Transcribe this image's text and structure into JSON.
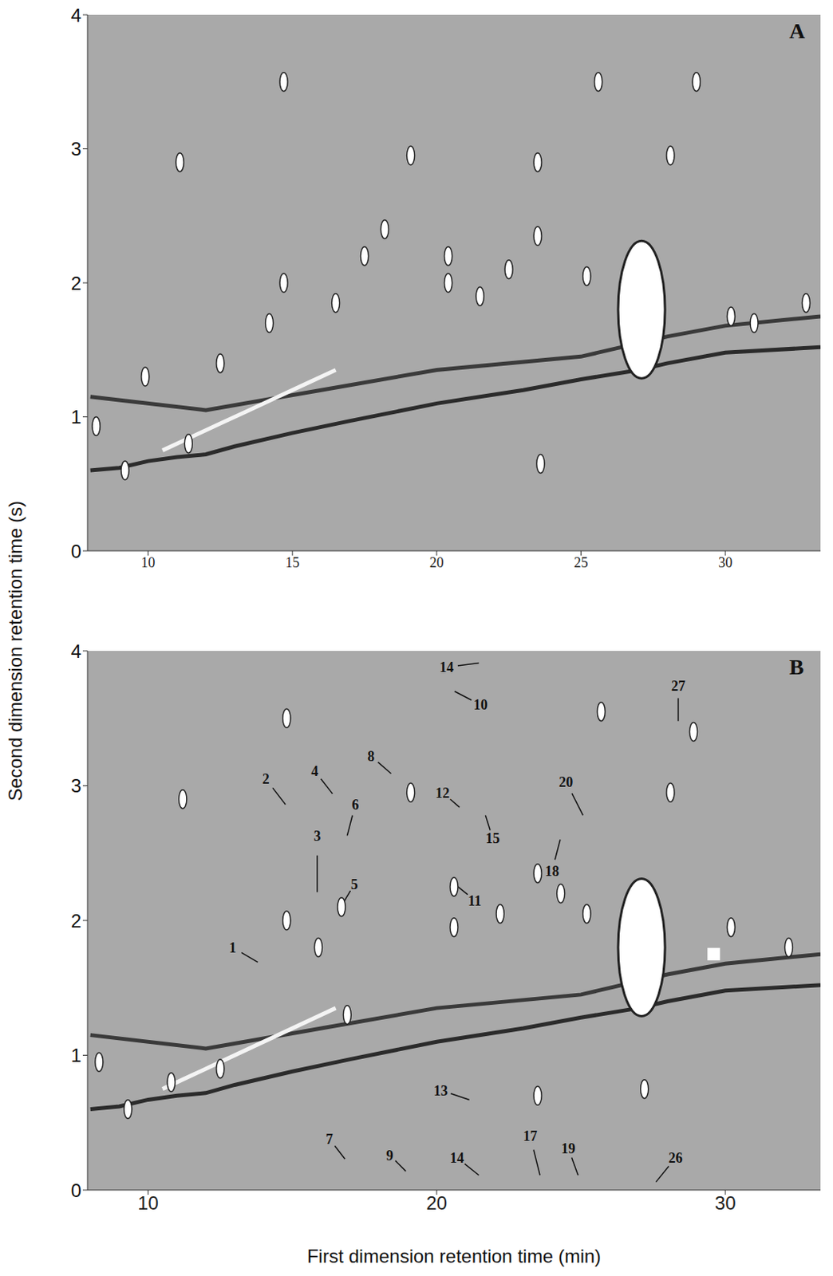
{
  "ylabel": "Second dimension retention time (s)",
  "chart_data": [
    {
      "type": "scatter",
      "title": "A",
      "xlim": [
        7.9,
        33.3
      ],
      "ylim": [
        0,
        4
      ],
      "xticks": [
        10,
        15,
        20,
        25,
        30
      ],
      "yticks": [
        0,
        1,
        2,
        3,
        4
      ],
      "series": [
        {
          "type": "line",
          "color": "#2b2b2b",
          "x": [
            8,
            9,
            10,
            11,
            12,
            13,
            15,
            17,
            20,
            23,
            25,
            27,
            28,
            30,
            33.3
          ],
          "values": [
            0.6,
            0.62,
            0.67,
            0.7,
            0.72,
            0.78,
            0.88,
            0.97,
            1.1,
            1.2,
            1.28,
            1.35,
            1.4,
            1.48,
            1.52
          ]
        },
        {
          "type": "line",
          "color": "#3a3a3a",
          "x": [
            8,
            12,
            16,
            20,
            25,
            28,
            30,
            33.3
          ],
          "values": [
            1.15,
            1.05,
            1.2,
            1.35,
            1.45,
            1.6,
            1.68,
            1.75
          ]
        },
        {
          "type": "line",
          "color": "#f4f4f4",
          "x": [
            10.5,
            11.5,
            12.5,
            13.5,
            14.5,
            15.5,
            16.5
          ],
          "values": [
            0.75,
            0.85,
            0.95,
            1.05,
            1.15,
            1.25,
            1.35
          ]
        },
        {
          "type": "scatter",
          "color": "#ffffff",
          "marker": "ellipse",
          "x": [
            8.2,
            9.2,
            9.9,
            11.1,
            11.4,
            12.5,
            14.2,
            14.7,
            14.7,
            16.5,
            17.5,
            18.2,
            19.1,
            20.4,
            20.4,
            21.5,
            22.5,
            23.5,
            23.5,
            23.6,
            25.2,
            25.6,
            28.1,
            29.0,
            30.2,
            31.0,
            32.8
          ],
          "values": [
            0.93,
            0.6,
            1.3,
            2.9,
            0.8,
            1.4,
            1.7,
            2.0,
            3.5,
            1.85,
            2.2,
            2.4,
            2.95,
            2.0,
            2.2,
            1.9,
            2.1,
            2.35,
            2.9,
            0.65,
            2.05,
            3.5,
            2.95,
            3.5,
            1.75,
            1.7,
            1.85
          ]
        },
        {
          "type": "scatter",
          "color": "#ffffff",
          "marker": "blob",
          "x": [
            27.1
          ],
          "values": [
            1.8
          ]
        }
      ]
    },
    {
      "type": "scatter",
      "title": "B",
      "xlabel": "First dimension retention time (min)",
      "xlim": [
        7.9,
        33.3
      ],
      "ylim": [
        0,
        4
      ],
      "xticks": [
        10,
        20,
        30
      ],
      "yticks": [
        0,
        1,
        2,
        3,
        4
      ],
      "series": [
        {
          "type": "line",
          "color": "#2b2b2b",
          "x": [
            8,
            9,
            10,
            11,
            12,
            13,
            15,
            17,
            20,
            23,
            25,
            27,
            28,
            30,
            33.3
          ],
          "values": [
            0.6,
            0.62,
            0.67,
            0.7,
            0.72,
            0.78,
            0.88,
            0.97,
            1.1,
            1.2,
            1.28,
            1.35,
            1.4,
            1.48,
            1.52
          ]
        },
        {
          "type": "line",
          "color": "#3a3a3a",
          "x": [
            8,
            12,
            16,
            20,
            25,
            28,
            30,
            33.3
          ],
          "values": [
            1.15,
            1.05,
            1.2,
            1.35,
            1.45,
            1.6,
            1.68,
            1.75
          ]
        },
        {
          "type": "line",
          "color": "#f4f4f4",
          "x": [
            10.5,
            11.5,
            12.5,
            13.5,
            14.5,
            15.5,
            16.5
          ],
          "values": [
            0.75,
            0.85,
            0.95,
            1.05,
            1.15,
            1.25,
            1.35
          ]
        },
        {
          "type": "scatter",
          "color": "#ffffff",
          "marker": "ellipse",
          "x": [
            8.3,
            9.3,
            10.8,
            11.2,
            12.5,
            14.8,
            14.8,
            15.9,
            16.7,
            16.9,
            19.1,
            20.6,
            20.6,
            22.2,
            23.5,
            23.5,
            24.3,
            25.2,
            25.7,
            27.2,
            28.1,
            28.9,
            30.2,
            32.2
          ],
          "values": [
            0.95,
            0.6,
            0.8,
            2.9,
            0.9,
            2.0,
            3.5,
            1.8,
            2.1,
            1.3,
            2.95,
            2.25,
            1.95,
            2.05,
            2.35,
            0.7,
            2.2,
            2.05,
            3.55,
            0.75,
            2.95,
            3.4,
            1.95,
            1.8
          ]
        },
        {
          "type": "scatter",
          "color": "#ffffff",
          "marker": "blob",
          "x": [
            27.1
          ],
          "values": [
            1.8
          ]
        },
        {
          "type": "scatter",
          "color": "#ffffff",
          "marker": "square",
          "x": [
            29.6
          ],
          "values": [
            1.75
          ]
        }
      ],
      "annotations": [
        {
          "text": "1",
          "x": 12.93,
          "y": 1.8,
          "tip_x": 13.8,
          "tip_y": 1.69
        },
        {
          "text": "2",
          "x": 14.08,
          "y": 3.05,
          "tip_x": 14.76,
          "tip_y": 2.86
        },
        {
          "text": "3",
          "x": 15.86,
          "y": 2.63,
          "tip_x": 15.86,
          "tip_y": 2.21
        },
        {
          "text": "4",
          "x": 15.77,
          "y": 3.11,
          "tip_x": 16.39,
          "tip_y": 2.94
        },
        {
          "text": "5",
          "x": 17.15,
          "y": 2.27,
          "tip_x": 16.76,
          "tip_y": 2.13
        },
        {
          "text": "6",
          "x": 17.18,
          "y": 2.86,
          "tip_x": 16.9,
          "tip_y": 2.63
        },
        {
          "text": "7",
          "x": 16.28,
          "y": 0.38,
          "tip_x": 16.82,
          "tip_y": 0.23
        },
        {
          "text": "8",
          "x": 17.72,
          "y": 3.22,
          "tip_x": 18.42,
          "tip_y": 3.09
        },
        {
          "text": "9",
          "x": 18.37,
          "y": 0.26,
          "tip_x": 18.93,
          "tip_y": 0.14
        },
        {
          "text": "10",
          "x": 21.52,
          "y": 3.6,
          "tip_x": 20.62,
          "tip_y": 3.7
        },
        {
          "text": "11",
          "x": 21.32,
          "y": 2.15,
          "tip_x": 20.62,
          "tip_y": 2.27
        },
        {
          "text": "12",
          "x": 20.2,
          "y": 2.95,
          "tip_x": 20.79,
          "tip_y": 2.84
        },
        {
          "text": "13",
          "x": 20.14,
          "y": 0.74,
          "tip_x": 21.13,
          "tip_y": 0.67
        },
        {
          "text": "14",
          "x": 20.34,
          "y": 3.88,
          "tip_x": 21.46,
          "tip_y": 3.91
        },
        {
          "text": "14",
          "x": 20.7,
          "y": 0.24,
          "tip_x": 21.46,
          "tip_y": 0.11
        },
        {
          "text": "15",
          "x": 21.94,
          "y": 2.61,
          "tip_x": 21.69,
          "tip_y": 2.78
        },
        {
          "text": "17",
          "x": 23.24,
          "y": 0.4,
          "tip_x": 23.58,
          "tip_y": 0.11
        },
        {
          "text": "18",
          "x": 24.0,
          "y": 2.37,
          "tip_x": 24.28,
          "tip_y": 2.6
        },
        {
          "text": "19",
          "x": 24.56,
          "y": 0.31,
          "tip_x": 24.9,
          "tip_y": 0.11
        },
        {
          "text": "20",
          "x": 24.48,
          "y": 3.03,
          "tip_x": 25.07,
          "tip_y": 2.78
        },
        {
          "text": "26",
          "x": 28.28,
          "y": 0.24,
          "tip_x": 27.6,
          "tip_y": 0.06
        },
        {
          "text": "27",
          "x": 28.37,
          "y": 3.74,
          "tip_x": 28.37,
          "tip_y": 3.48
        }
      ]
    }
  ]
}
